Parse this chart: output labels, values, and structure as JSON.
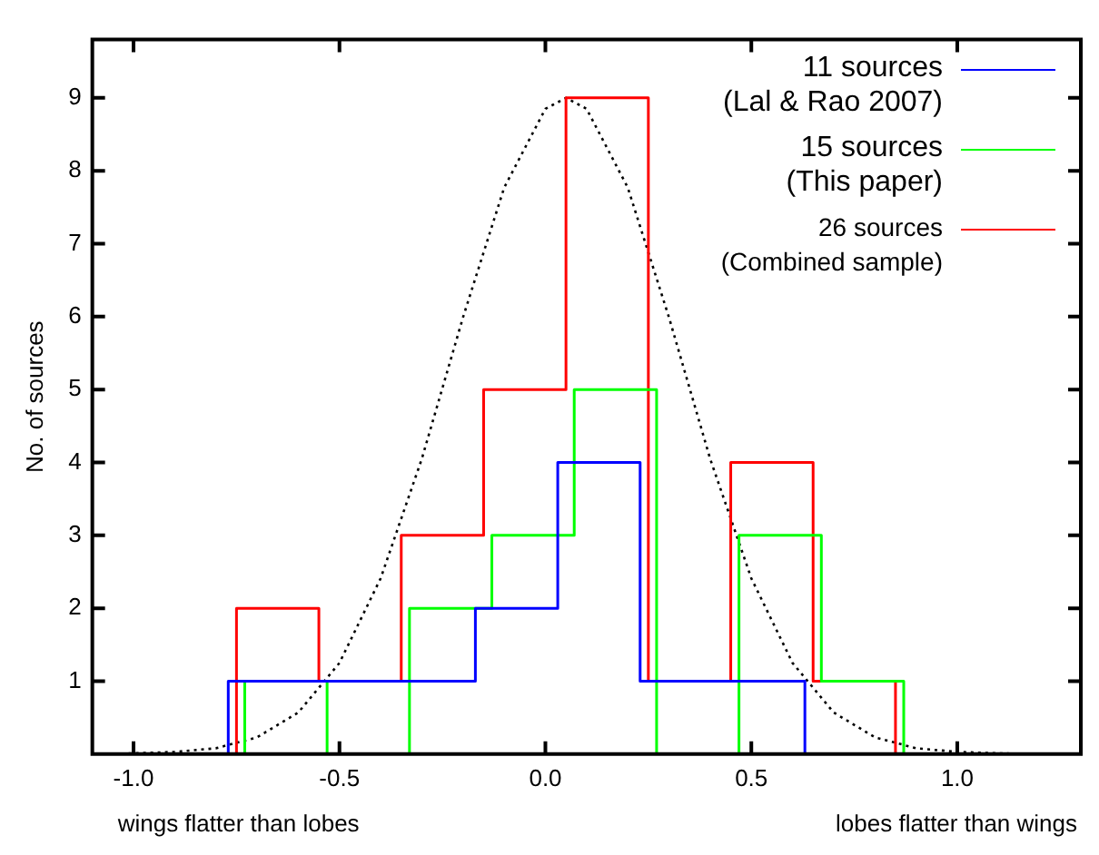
{
  "chart_data": {
    "type": "histogram",
    "ylabel": "No. of sources",
    "annotations": [
      "wings flatter than lobes",
      "lobes flatter than wings"
    ],
    "xlim": [
      -1.1,
      1.3
    ],
    "xticks": [
      {
        "value": -1,
        "label": "-1.0"
      },
      {
        "value": -0.5,
        "label": "-0.5"
      },
      {
        "value": 0,
        "label": "0.0"
      },
      {
        "value": 0.5,
        "label": "0.5"
      },
      {
        "value": 1,
        "label": "1.0"
      }
    ],
    "ylim": [
      0,
      9.8
    ],
    "yticks": [
      1,
      2,
      3,
      4,
      5,
      6,
      7,
      8,
      9
    ],
    "grid": false,
    "legend": "top right",
    "series": [
      {
        "name": "11 sources\n(Lal & Rao 2007)",
        "color": "#0000ff",
        "bins": [
          -0.77,
          -0.57,
          -0.37,
          -0.17,
          0.03,
          0.23,
          0.43,
          0.63
        ],
        "values": [
          1,
          1,
          1,
          2,
          4,
          1,
          1
        ]
      },
      {
        "name": "15 sources\n(This paper)",
        "color": "#00ff00",
        "bins": [
          -0.73,
          -0.53,
          -0.33,
          -0.13,
          0.07,
          0.27,
          0.47,
          0.67,
          0.87
        ],
        "values": [
          1,
          0,
          2,
          3,
          5,
          0,
          3,
          1
        ]
      },
      {
        "name": "26 sources\n(Combined sample)",
        "color": "#ff0000",
        "bins": [
          -0.75,
          -0.55,
          -0.35,
          -0.15,
          0.05,
          0.25,
          0.45,
          0.65,
          0.85
        ],
        "values": [
          2,
          1,
          3,
          5,
          9,
          1,
          4,
          1
        ]
      },
      {
        "type": "line",
        "color": "#000000",
        "line_style": "dotted",
        "x": [
          -1.1,
          -1.0,
          -0.9,
          -0.8,
          -0.7,
          -0.6,
          -0.5,
          -0.4,
          -0.3,
          -0.2,
          -0.1,
          0.0,
          0.05,
          0.1,
          0.2,
          0.3,
          0.4,
          0.5,
          0.6,
          0.7,
          0.8,
          0.9,
          1.0,
          1.1,
          1.2,
          1.3
        ],
        "values": [
          0,
          0.01,
          0.03,
          0.08,
          0.23,
          0.57,
          1.25,
          2.41,
          4.05,
          5.99,
          7.77,
          8.85,
          9,
          8.85,
          7.77,
          5.99,
          4.05,
          2.41,
          1.25,
          0.57,
          0.23,
          0.08,
          0.03,
          0.01,
          0,
          0
        ]
      }
    ]
  }
}
